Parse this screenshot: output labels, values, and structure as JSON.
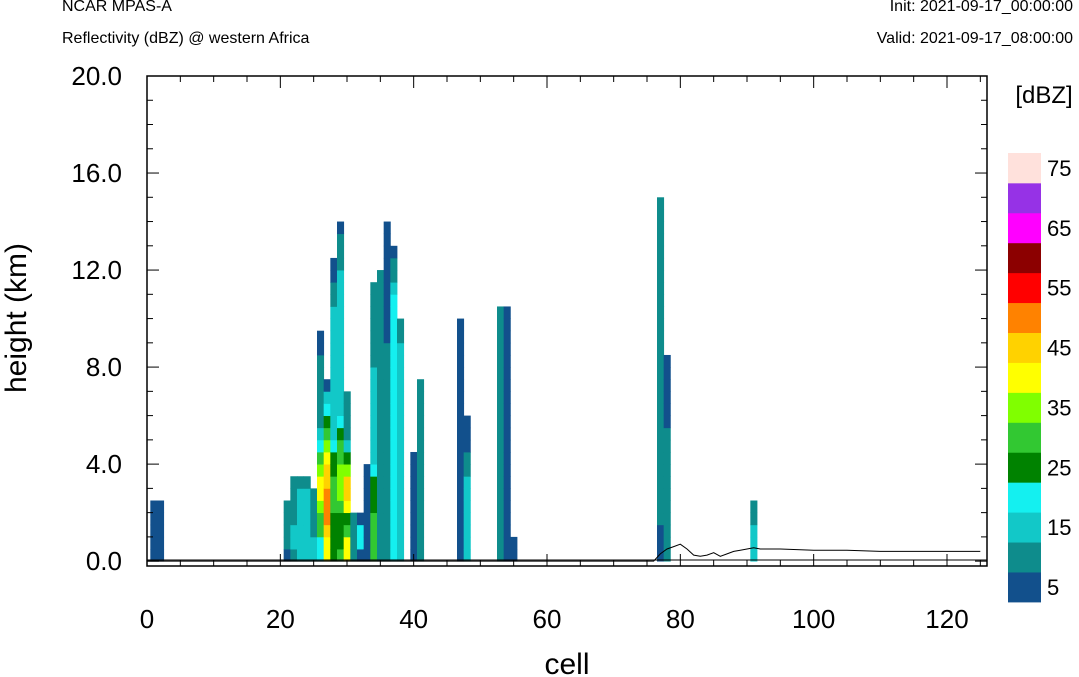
{
  "header": {
    "model": "NCAR MPAS-A",
    "field": "Reflectivity (dBZ) @ western Africa",
    "init": "Init: 2021-09-17_00:00:00",
    "valid": "Valid: 2021-09-17_08:00:00"
  },
  "chart_data": {
    "type": "heatmap",
    "title": "Reflectivity (dBZ) @ western Africa",
    "xlabel": "cell",
    "ylabel": "height (km)",
    "xlim": [
      0,
      126
    ],
    "ylim": [
      -0.2,
      20
    ],
    "xticks": [
      "0",
      "20",
      "40",
      "60",
      "80",
      "100",
      "120"
    ],
    "yticks": [
      "0.0",
      "4.0",
      "8.0",
      "12.0",
      "16.0",
      "20.0"
    ],
    "colorbar": {
      "label": "[dBZ]",
      "levels": [
        5,
        10,
        15,
        20,
        25,
        30,
        35,
        40,
        45,
        50,
        55,
        60,
        65,
        70,
        75
      ],
      "tick_labels": [
        "5",
        "15",
        "25",
        "35",
        "45",
        "55",
        "65",
        "75"
      ],
      "colors": [
        "#12508C",
        "#0E8C8C",
        "#12C8C8",
        "#14F0F0",
        "#008200",
        "#32C832",
        "#80FF00",
        "#FFFF00",
        "#FFD200",
        "#FF8200",
        "#FF0000",
        "#8C0000",
        "#FF00FF",
        "#9632E6",
        "#FFE1DC"
      ]
    },
    "columns": [
      {
        "x": 1,
        "levels": [
          5,
          5,
          5,
          5,
          5
        ]
      },
      {
        "x": 2,
        "levels": [
          5,
          5,
          5,
          5,
          5
        ]
      },
      {
        "x": 21,
        "levels": [
          5,
          10,
          10,
          10,
          10
        ]
      },
      {
        "x": 22,
        "levels": [
          10,
          15,
          15,
          10,
          10,
          10,
          10
        ]
      },
      {
        "x": 23,
        "levels": [
          15,
          15,
          15,
          15,
          15,
          15,
          10
        ]
      },
      {
        "x": 24,
        "levels": [
          15,
          15,
          15,
          15,
          15,
          15,
          10
        ]
      },
      {
        "x": 25,
        "levels": [
          15,
          15,
          10,
          10,
          10,
          10
        ]
      },
      {
        "x": 26,
        "levels": [
          20,
          20,
          30,
          30,
          35,
          40,
          40,
          35,
          30,
          20,
          15,
          10,
          10,
          10,
          10,
          10,
          10,
          5,
          5
        ]
      },
      {
        "x": 27,
        "levels": [
          40,
          40,
          45,
          50,
          50,
          50,
          45,
          45,
          40,
          35,
          30,
          25,
          20,
          15,
          5
        ]
      },
      {
        "x": 28,
        "levels": [
          25,
          25,
          25,
          25,
          30,
          30,
          30,
          25,
          25,
          20,
          15,
          15,
          15,
          15,
          15,
          15,
          15,
          15,
          15,
          15,
          15,
          10,
          10,
          5,
          5
        ]
      },
      {
        "x": 29,
        "levels": [
          30,
          25,
          25,
          25,
          30,
          35,
          35,
          35,
          30,
          30,
          25,
          20,
          15,
          15,
          15,
          15,
          15,
          15,
          15,
          15,
          15,
          15,
          15,
          15,
          10,
          10,
          10,
          5
        ]
      },
      {
        "x": 30,
        "levels": [
          40,
          40,
          30,
          25,
          40,
          45,
          45,
          35,
          25,
          15,
          10,
          10,
          10,
          10
        ]
      },
      {
        "x": 31,
        "levels": [
          10,
          10,
          10,
          10
        ]
      },
      {
        "x": 32,
        "levels": [
          5,
          20,
          20,
          5
        ]
      },
      {
        "x": 33,
        "levels": [
          5,
          5,
          5,
          5,
          5,
          5,
          5,
          5
        ]
      },
      {
        "x": 34,
        "levels": [
          30,
          30,
          30,
          30,
          25,
          25,
          25,
          20,
          15,
          15,
          15,
          15,
          15,
          15,
          15,
          15,
          10,
          10,
          10,
          10,
          10,
          10,
          10
        ]
      },
      {
        "x": 35,
        "levels": [
          10,
          10,
          10,
          10,
          10,
          10,
          10,
          10,
          10,
          10,
          10,
          10,
          10,
          10,
          10,
          10,
          10,
          10,
          10,
          10,
          10,
          10,
          10,
          10
        ]
      },
      {
        "x": 36,
        "levels": [
          10,
          10,
          10,
          10,
          10,
          10,
          10,
          10,
          10,
          10,
          10,
          10,
          10,
          10,
          10,
          10,
          10,
          10,
          5,
          5,
          5,
          5,
          5,
          5,
          5,
          5,
          5,
          5
        ]
      },
      {
        "x": 37,
        "levels": [
          20,
          20,
          20,
          20,
          20,
          20,
          20,
          20,
          20,
          20,
          20,
          20,
          20,
          20,
          20,
          20,
          20,
          20,
          20,
          20,
          20,
          20,
          15,
          10,
          10,
          5
        ]
      },
      {
        "x": 38,
        "levels": [
          15,
          15,
          15,
          15,
          15,
          15,
          15,
          15,
          15,
          15,
          15,
          15,
          15,
          15,
          15,
          15,
          15,
          15,
          10,
          10
        ]
      },
      {
        "x": 40,
        "levels": [
          5,
          5,
          5,
          5,
          5,
          5,
          5,
          5,
          5
        ]
      },
      {
        "x": 41,
        "levels": [
          10,
          10,
          10,
          10,
          10,
          10,
          10,
          10,
          10,
          10,
          10,
          10,
          10,
          10,
          10
        ]
      },
      {
        "x": 47,
        "levels": [
          5,
          5,
          5,
          5,
          5,
          5,
          5,
          5,
          5,
          5,
          5,
          5,
          5,
          5,
          5,
          5,
          5,
          5,
          5,
          5
        ]
      },
      {
        "x": 48,
        "levels": [
          15,
          15,
          15,
          15,
          15,
          15,
          15,
          10,
          10,
          5,
          5,
          5
        ]
      },
      {
        "x": 53,
        "levels": [
          10,
          10,
          10,
          10,
          10,
          10,
          10,
          10,
          10,
          10,
          10,
          10,
          10,
          10,
          10,
          10,
          10,
          10,
          10,
          10,
          10
        ]
      },
      {
        "x": 54,
        "levels": [
          5,
          5,
          5,
          5,
          5,
          5,
          5,
          5,
          5,
          5,
          5,
          5,
          5,
          5,
          5,
          5,
          5,
          5,
          5,
          5,
          5
        ]
      },
      {
        "x": 55,
        "levels": [
          5,
          5
        ]
      },
      {
        "x": 77,
        "levels": [
          5,
          5,
          5,
          10,
          10,
          10,
          10,
          10,
          10,
          10,
          10,
          10,
          10,
          10,
          10,
          10,
          10,
          10,
          10,
          10,
          10,
          10,
          10,
          10,
          10,
          10,
          10,
          10,
          10,
          10
        ]
      },
      {
        "x": 78,
        "levels": [
          10,
          10,
          10,
          10,
          10,
          10,
          10,
          10,
          10,
          10,
          10,
          5,
          5,
          5,
          5,
          5,
          5
        ]
      },
      {
        "x": 91,
        "levels": [
          15,
          15,
          15,
          10,
          10
        ]
      }
    ],
    "terrain": {
      "x": [
        0,
        76,
        77,
        78,
        79,
        80,
        81,
        82,
        83,
        84,
        85,
        86,
        87,
        88,
        89,
        90,
        91,
        92,
        95,
        100,
        105,
        110,
        115,
        120,
        125
      ],
      "y": [
        0.0,
        0.0,
        0.3,
        0.5,
        0.6,
        0.7,
        0.5,
        0.25,
        0.2,
        0.25,
        0.35,
        0.2,
        0.3,
        0.4,
        0.45,
        0.5,
        0.55,
        0.5,
        0.5,
        0.45,
        0.45,
        0.4,
        0.4,
        0.4,
        0.4
      ]
    }
  }
}
